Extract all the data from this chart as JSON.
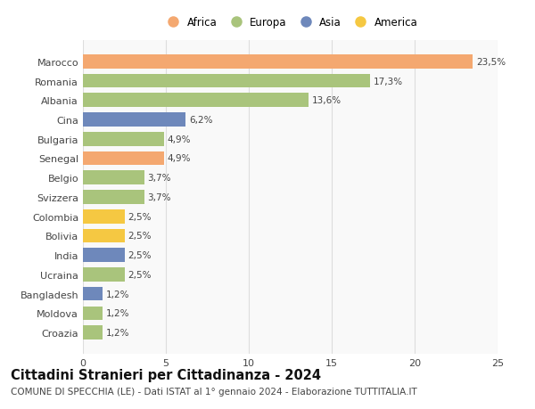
{
  "categories": [
    "Marocco",
    "Romania",
    "Albania",
    "Cina",
    "Bulgaria",
    "Senegal",
    "Belgio",
    "Svizzera",
    "Colombia",
    "Bolivia",
    "India",
    "Ucraina",
    "Bangladesh",
    "Moldova",
    "Croazia"
  ],
  "values": [
    23.5,
    17.3,
    13.6,
    6.2,
    4.9,
    4.9,
    3.7,
    3.7,
    2.5,
    2.5,
    2.5,
    2.5,
    1.2,
    1.2,
    1.2
  ],
  "labels": [
    "23,5%",
    "17,3%",
    "13,6%",
    "6,2%",
    "4,9%",
    "4,9%",
    "3,7%",
    "3,7%",
    "2,5%",
    "2,5%",
    "2,5%",
    "2,5%",
    "1,2%",
    "1,2%",
    "1,2%"
  ],
  "colors": [
    "#F4A870",
    "#A9C47C",
    "#A9C47C",
    "#6E88BB",
    "#A9C47C",
    "#F4A870",
    "#A9C47C",
    "#A9C47C",
    "#F5C842",
    "#F5C842",
    "#6E88BB",
    "#A9C47C",
    "#6E88BB",
    "#A9C47C",
    "#A9C47C"
  ],
  "continents": [
    "Africa",
    "Europa",
    "Asia",
    "America"
  ],
  "legend_colors": [
    "#F4A870",
    "#A9C47C",
    "#6E88BB",
    "#F5C842"
  ],
  "title": "Cittadini Stranieri per Cittadinanza - 2024",
  "subtitle": "COMUNE DI SPECCHIA (LE) - Dati ISTAT al 1° gennaio 2024 - Elaborazione TUTTITALIA.IT",
  "xlim": [
    0,
    25
  ],
  "xticks": [
    0,
    5,
    10,
    15,
    20,
    25
  ],
  "background_color": "#ffffff",
  "plot_bg_color": "#f9f9f9",
  "grid_color": "#dddddd",
  "title_fontsize": 10.5,
  "subtitle_fontsize": 7.5,
  "bar_label_fontsize": 7.5,
  "tick_label_fontsize": 8,
  "legend_fontsize": 8.5
}
